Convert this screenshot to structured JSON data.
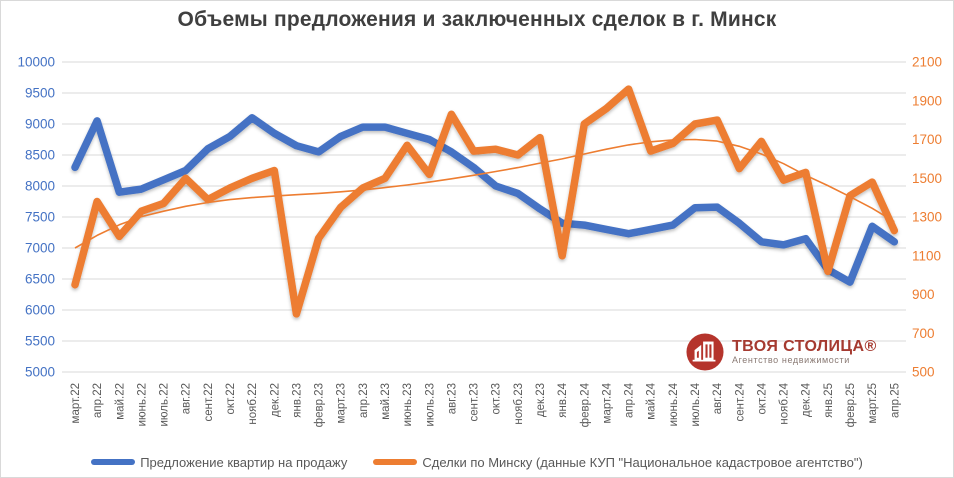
{
  "title": "Объемы предложения и заключенных сделок в г. Минск",
  "logo": {
    "name": "ТВОЯ СТОЛИЦА®",
    "subtitle": "Агентство недвижимости"
  },
  "colors": {
    "supply_line": "#4472C4",
    "deals_line": "#ED7D31",
    "trend_line": "#ED7D31",
    "gridline": "#D9D9D9",
    "left_axis_labels": "#4472C4",
    "right_axis_labels": "#ED7D31",
    "x_axis_labels": "#595959",
    "title_text": "#3F3F3F",
    "logo_red": "#B5342C"
  },
  "chart_data": {
    "type": "line",
    "title": "Объемы предложения и заключенных сделок в г. Минск",
    "grid": true,
    "legend_position": "bottom",
    "categories": [
      "март.22",
      "апр.22",
      "май.22",
      "июнь.22",
      "июль.22",
      "авг.22",
      "сент.22",
      "окт.22",
      "нояб.22",
      "дек.22",
      "янв.23",
      "февр.23",
      "март.23",
      "апр.23",
      "май.23",
      "июнь.23",
      "июль.23",
      "авг.23",
      "сент.23",
      "окт.23",
      "нояб.23",
      "дек.23",
      "янв.24",
      "февр.24",
      "март.24",
      "апр.24",
      "май.24",
      "июнь.24",
      "июль.24",
      "авг.24",
      "сент.24",
      "окт.24",
      "нояб.24",
      "дек.24",
      "янв.25",
      "февр.25",
      "март.25",
      "апр.25"
    ],
    "left_axis": {
      "min": 5000,
      "max": 10000,
      "step": 500,
      "ticks": [
        10000,
        9500,
        9000,
        8500,
        8000,
        7500,
        7000,
        6500,
        6000,
        5500,
        5000
      ]
    },
    "right_axis": {
      "min": 500,
      "max": 2100,
      "step": 200,
      "ticks": [
        2100,
        1900,
        1700,
        1500,
        1300,
        1100,
        900,
        700,
        500
      ]
    },
    "series": [
      {
        "name": "Предложение квартир на продажу",
        "axis": "left",
        "color": "#4472C4",
        "values": [
          8300,
          9050,
          7900,
          7950,
          8100,
          8250,
          8600,
          8800,
          9100,
          8850,
          8650,
          8550,
          8800,
          8950,
          8950,
          8850,
          8750,
          8550,
          8300,
          8000,
          7880,
          7630,
          7400,
          7370,
          7300,
          7230,
          7300,
          7370,
          7650,
          7660,
          7400,
          7100,
          7050,
          7150,
          6650,
          6450,
          7350,
          7100
        ]
      },
      {
        "name": "Сделки по Минску (данные КУП \"Национальное кадастровое агентство\")",
        "axis": "right",
        "color": "#ED7D31",
        "values": [
          950,
          1380,
          1200,
          1330,
          1370,
          1500,
          1390,
          1450,
          1500,
          1540,
          800,
          1190,
          1350,
          1450,
          1500,
          1670,
          1520,
          1830,
          1640,
          1650,
          1620,
          1710,
          1100,
          1780,
          1860,
          1960,
          1640,
          1680,
          1780,
          1800,
          1550,
          1690,
          1490,
          1530,
          1020,
          1410,
          1480,
          1230
        ]
      }
    ],
    "trendline": {
      "of_series": "Сделки по Минску (данные КУП \"Национальное кадастровое агентство\")",
      "axis": "right",
      "color": "#ED7D31",
      "values": [
        1140,
        1205,
        1260,
        1302,
        1330,
        1355,
        1375,
        1390,
        1400,
        1408,
        1415,
        1422,
        1430,
        1440,
        1452,
        1465,
        1480,
        1497,
        1515,
        1535,
        1555,
        1578,
        1600,
        1625,
        1650,
        1672,
        1688,
        1698,
        1700,
        1692,
        1665,
        1625,
        1575,
        1515,
        1462,
        1405,
        1345,
        1276
      ]
    }
  }
}
